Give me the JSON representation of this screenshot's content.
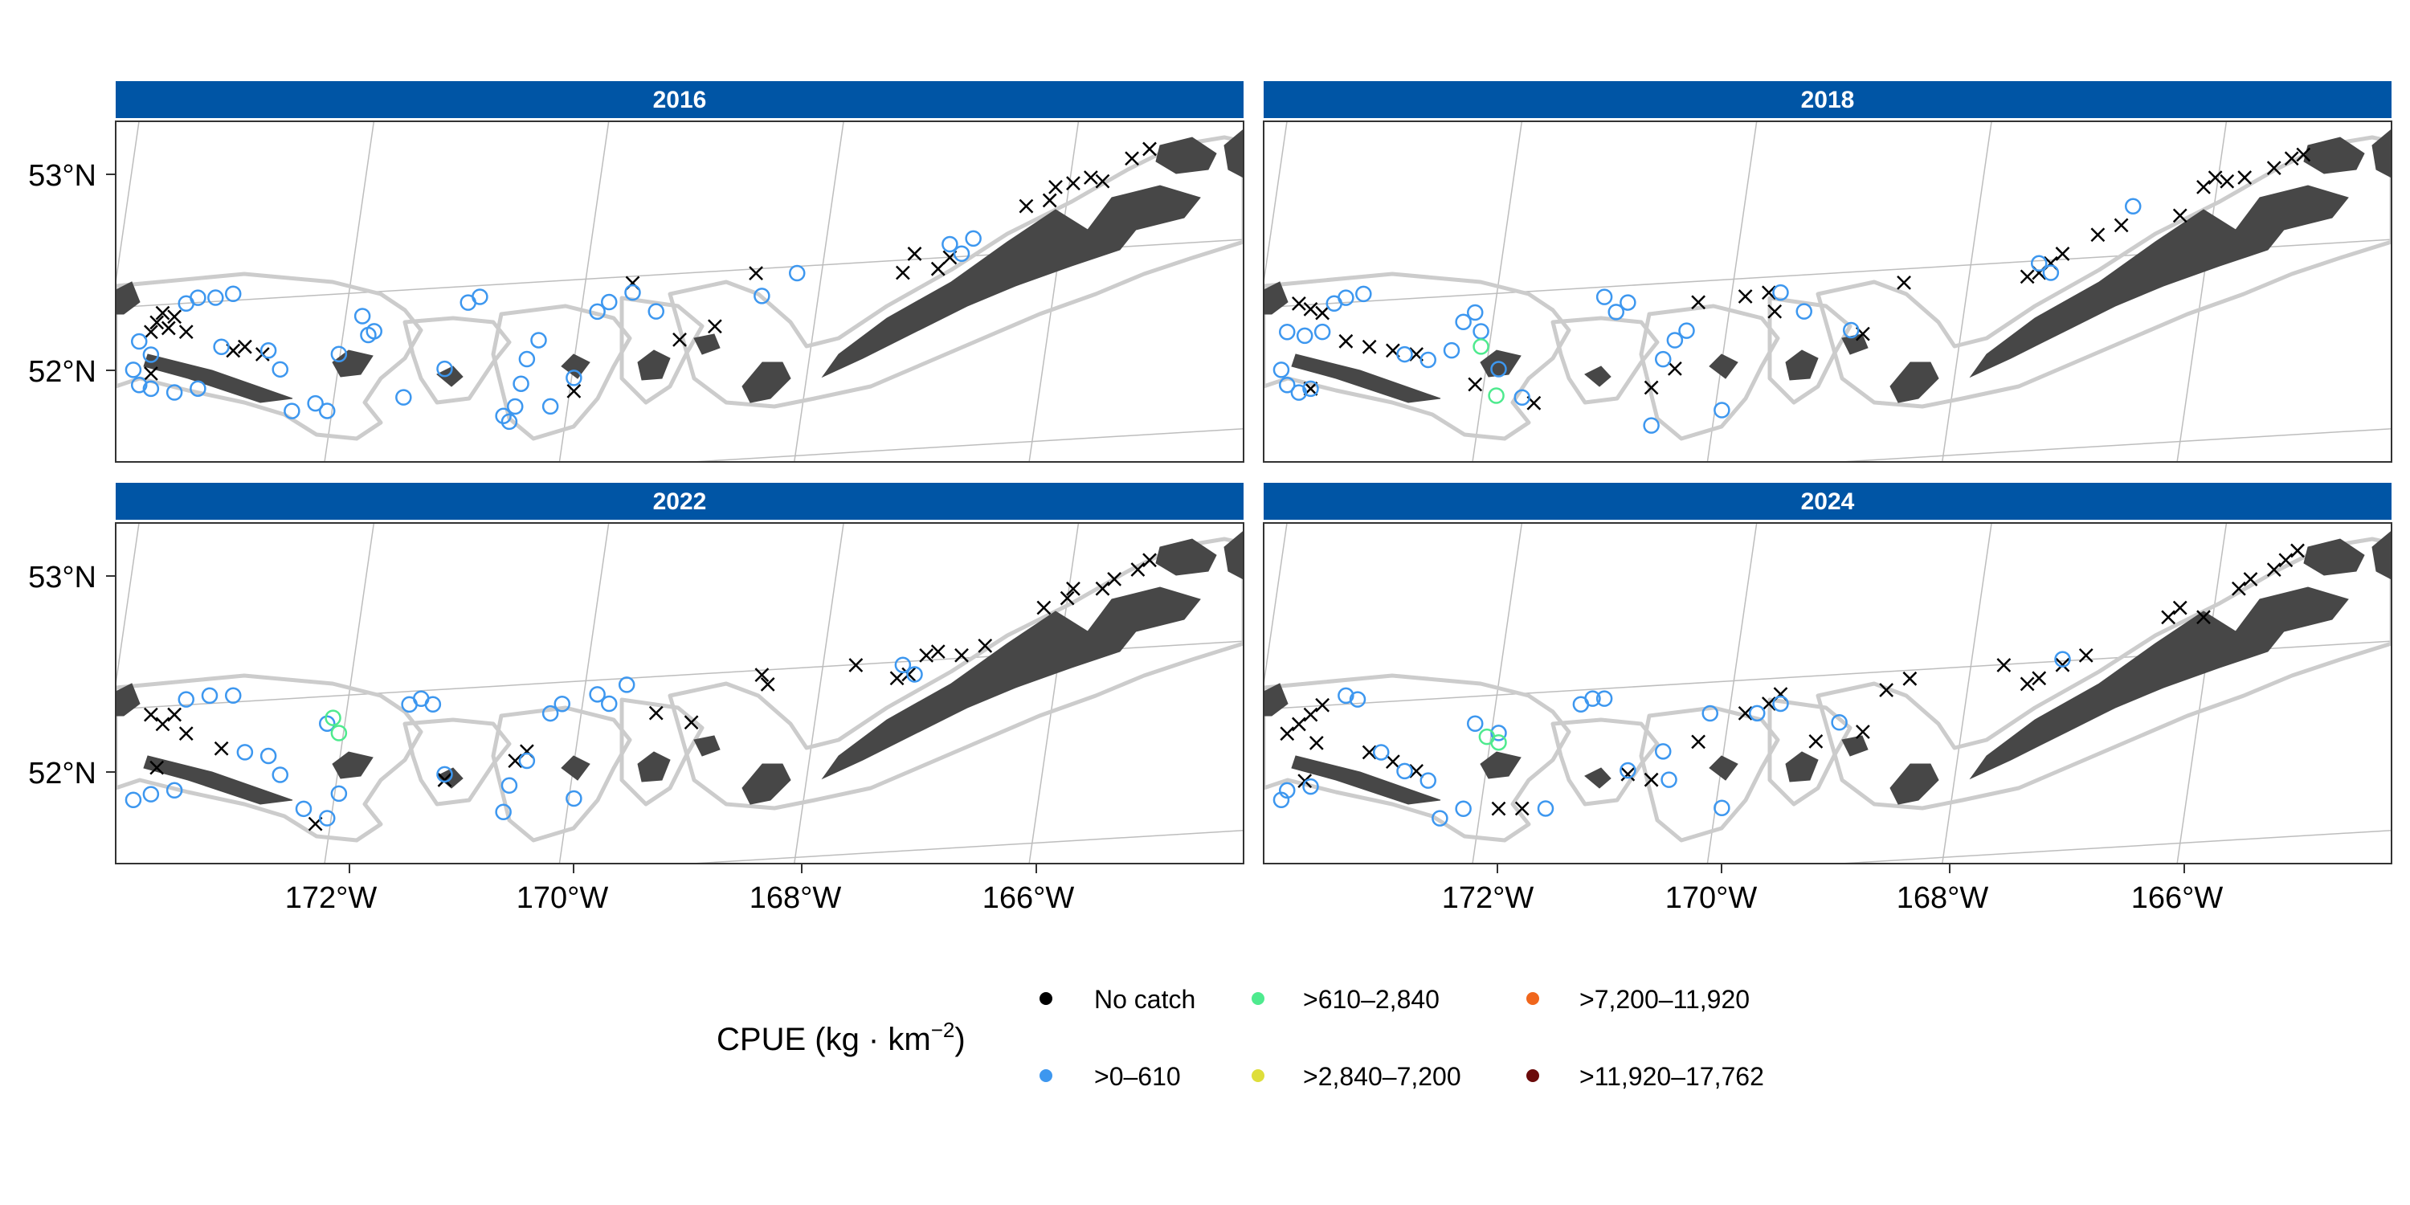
{
  "chart_data": {
    "type": "scatter",
    "subtype": "faceted-map",
    "x_ticks": [
      "172°W",
      "170°W",
      "168°W",
      "166°W"
    ],
    "y_ticks": [
      "53°N",
      "52°N"
    ],
    "xlim": [
      -173.9,
      -164.3
    ],
    "ylim": [
      51.5,
      53.3
    ],
    "legend": {
      "title_prefix": "CPUE (kg · km",
      "title_exp": "−2",
      "title_suffix": ")",
      "position": "bottom",
      "entries": [
        {
          "label": "No catch",
          "color": "#000000"
        },
        {
          "label": ">0–610",
          "color": "#3d97ef"
        },
        {
          "label": ">610–2,840",
          "color": "#4eea8e"
        },
        {
          "label": ">2,840–7,200",
          "color": "#dede3a"
        },
        {
          "label": ">7,200–11,920",
          "color": "#f0661c"
        },
        {
          "label": ">11,920–17,762",
          "color": "#6b0a0a"
        }
      ]
    },
    "panels": [
      {
        "title": "2016",
        "no_catch": [
          [
            -173.6,
            52.2
          ],
          [
            -173.55,
            52.25
          ],
          [
            -173.5,
            52.3
          ],
          [
            -173.4,
            52.28
          ],
          [
            -173.45,
            52.22
          ],
          [
            -173.3,
            52.2
          ],
          [
            -173.6,
            51.98
          ],
          [
            -172.8,
            52.12
          ],
          [
            -172.65,
            52.08
          ],
          [
            -172.9,
            52.1
          ],
          [
            -170.0,
            51.88
          ],
          [
            -169.5,
            52.45
          ],
          [
            -169.1,
            52.15
          ],
          [
            -168.8,
            52.22
          ],
          [
            -168.45,
            52.5
          ],
          [
            -167.2,
            52.5
          ],
          [
            -167.1,
            52.6
          ],
          [
            -166.9,
            52.52
          ],
          [
            -166.8,
            52.58
          ],
          [
            -166.15,
            52.85
          ],
          [
            -165.95,
            52.88
          ],
          [
            -165.9,
            52.95
          ],
          [
            -165.75,
            52.97
          ],
          [
            -165.6,
            53.0
          ],
          [
            -165.5,
            52.98
          ],
          [
            -165.25,
            53.1
          ],
          [
            -165.1,
            53.15
          ]
        ],
        "low": [
          [
            -173.75,
            52.0
          ],
          [
            -173.7,
            51.92
          ],
          [
            -173.6,
            51.9
          ],
          [
            -173.4,
            51.88
          ],
          [
            -173.2,
            51.9
          ],
          [
            -173.3,
            52.35
          ],
          [
            -173.2,
            52.38
          ],
          [
            -173.05,
            52.38
          ],
          [
            -172.9,
            52.4
          ],
          [
            -173.7,
            52.15
          ],
          [
            -173.6,
            52.08
          ],
          [
            -173.0,
            52.12
          ],
          [
            -172.6,
            52.1
          ],
          [
            -172.5,
            52.0
          ],
          [
            -172.4,
            51.78
          ],
          [
            -172.2,
            51.82
          ],
          [
            -172.1,
            51.78
          ],
          [
            -172.0,
            52.08
          ],
          [
            -171.8,
            52.28
          ],
          [
            -171.75,
            52.18
          ],
          [
            -171.7,
            52.2
          ],
          [
            -171.45,
            51.85
          ],
          [
            -171.1,
            52.0
          ],
          [
            -170.9,
            52.35
          ],
          [
            -170.8,
            52.38
          ],
          [
            -170.6,
            51.75
          ],
          [
            -170.55,
            51.72
          ],
          [
            -170.5,
            51.8
          ],
          [
            -170.45,
            51.92
          ],
          [
            -170.4,
            52.05
          ],
          [
            -170.3,
            52.15
          ],
          [
            -170.2,
            51.8
          ],
          [
            -170.0,
            51.95
          ],
          [
            -169.8,
            52.3
          ],
          [
            -169.7,
            52.35
          ],
          [
            -169.5,
            52.4
          ],
          [
            -169.3,
            52.3
          ],
          [
            -168.4,
            52.38
          ],
          [
            -168.1,
            52.5
          ],
          [
            -166.8,
            52.65
          ],
          [
            -166.7,
            52.6
          ],
          [
            -166.6,
            52.68
          ]
        ],
        "mid": []
      },
      {
        "title": "2018",
        "no_catch": [
          [
            -173.6,
            52.35
          ],
          [
            -173.5,
            52.32
          ],
          [
            -173.4,
            52.3
          ],
          [
            -173.2,
            52.15
          ],
          [
            -173.0,
            52.12
          ],
          [
            -172.8,
            52.1
          ],
          [
            -172.6,
            52.08
          ],
          [
            -173.5,
            51.9
          ],
          [
            -172.1,
            51.92
          ],
          [
            -171.6,
            51.82
          ],
          [
            -170.6,
            51.9
          ],
          [
            -170.4,
            52.0
          ],
          [
            -170.2,
            52.35
          ],
          [
            -169.8,
            52.38
          ],
          [
            -169.6,
            52.4
          ],
          [
            -169.55,
            52.3
          ],
          [
            -168.8,
            52.18
          ],
          [
            -168.45,
            52.45
          ],
          [
            -167.4,
            52.48
          ],
          [
            -167.3,
            52.5
          ],
          [
            -167.2,
            52.55
          ],
          [
            -167.1,
            52.6
          ],
          [
            -166.8,
            52.7
          ],
          [
            -166.6,
            52.75
          ],
          [
            -166.1,
            52.8
          ],
          [
            -165.9,
            52.95
          ],
          [
            -165.8,
            53.0
          ],
          [
            -165.7,
            52.98
          ],
          [
            -165.55,
            53.0
          ],
          [
            -165.3,
            53.05
          ],
          [
            -165.15,
            53.1
          ],
          [
            -165.05,
            53.12
          ]
        ],
        "low": [
          [
            -173.75,
            52.0
          ],
          [
            -173.7,
            51.92
          ],
          [
            -173.6,
            51.88
          ],
          [
            -173.5,
            51.9
          ],
          [
            -173.7,
            52.2
          ],
          [
            -173.55,
            52.18
          ],
          [
            -173.4,
            52.2
          ],
          [
            -173.3,
            52.35
          ],
          [
            -173.2,
            52.38
          ],
          [
            -173.05,
            52.4
          ],
          [
            -172.7,
            52.08
          ],
          [
            -172.5,
            52.05
          ],
          [
            -172.3,
            52.1
          ],
          [
            -172.2,
            52.25
          ],
          [
            -172.1,
            52.3
          ],
          [
            -172.05,
            52.2
          ],
          [
            -171.9,
            52.0
          ],
          [
            -171.7,
            51.85
          ],
          [
            -171.0,
            52.38
          ],
          [
            -170.9,
            52.3
          ],
          [
            -170.8,
            52.35
          ],
          [
            -170.6,
            51.7
          ],
          [
            -170.5,
            52.05
          ],
          [
            -170.4,
            52.15
          ],
          [
            -170.3,
            52.2
          ],
          [
            -170.0,
            51.78
          ],
          [
            -169.5,
            52.4
          ],
          [
            -169.3,
            52.3
          ],
          [
            -168.9,
            52.2
          ],
          [
            -167.3,
            52.55
          ],
          [
            -167.2,
            52.5
          ],
          [
            -166.5,
            52.85
          ]
        ],
        "mid": [
          [
            -172.05,
            52.12
          ],
          [
            -171.92,
            51.86
          ]
        ]
      },
      {
        "title": "2022",
        "no_catch": [
          [
            -173.6,
            52.3
          ],
          [
            -173.5,
            52.25
          ],
          [
            -173.4,
            52.3
          ],
          [
            -173.3,
            52.2
          ],
          [
            -173.55,
            52.02
          ],
          [
            -173.0,
            52.12
          ],
          [
            -172.2,
            51.72
          ],
          [
            -171.1,
            51.95
          ],
          [
            -170.5,
            52.05
          ],
          [
            -170.4,
            52.1
          ],
          [
            -169.3,
            52.3
          ],
          [
            -169.0,
            52.25
          ],
          [
            -168.4,
            52.5
          ],
          [
            -168.35,
            52.45
          ],
          [
            -167.6,
            52.55
          ],
          [
            -167.25,
            52.48
          ],
          [
            -167.15,
            52.5
          ],
          [
            -167.0,
            52.6
          ],
          [
            -166.9,
            52.62
          ],
          [
            -166.7,
            52.6
          ],
          [
            -166.5,
            52.65
          ],
          [
            -166.0,
            52.85
          ],
          [
            -165.8,
            52.9
          ],
          [
            -165.75,
            52.95
          ],
          [
            -165.5,
            52.95
          ],
          [
            -165.4,
            53.0
          ],
          [
            -165.2,
            53.05
          ],
          [
            -165.1,
            53.1
          ]
        ],
        "low": [
          [
            -173.75,
            51.85
          ],
          [
            -173.6,
            51.88
          ],
          [
            -173.4,
            51.9
          ],
          [
            -173.3,
            52.38
          ],
          [
            -173.1,
            52.4
          ],
          [
            -172.9,
            52.4
          ],
          [
            -172.8,
            52.1
          ],
          [
            -172.6,
            52.08
          ],
          [
            -172.5,
            51.98
          ],
          [
            -172.3,
            51.8
          ],
          [
            -172.1,
            51.75
          ],
          [
            -172.0,
            51.88
          ],
          [
            -172.1,
            52.25
          ],
          [
            -171.4,
            52.35
          ],
          [
            -171.3,
            52.38
          ],
          [
            -171.2,
            52.35
          ],
          [
            -171.1,
            51.98
          ],
          [
            -170.6,
            51.78
          ],
          [
            -170.55,
            51.92
          ],
          [
            -170.4,
            52.05
          ],
          [
            -170.2,
            52.3
          ],
          [
            -170.1,
            52.35
          ],
          [
            -170.0,
            51.85
          ],
          [
            -169.8,
            52.4
          ],
          [
            -169.7,
            52.35
          ],
          [
            -169.55,
            52.45
          ],
          [
            -167.2,
            52.55
          ],
          [
            -167.1,
            52.5
          ]
        ],
        "mid": [
          [
            -172.05,
            52.28
          ],
          [
            -172.0,
            52.2
          ]
        ]
      },
      {
        "title": "2024",
        "no_catch": [
          [
            -173.7,
            52.2
          ],
          [
            -173.6,
            52.25
          ],
          [
            -173.5,
            52.3
          ],
          [
            -173.4,
            52.35
          ],
          [
            -173.45,
            52.15
          ],
          [
            -173.55,
            51.95
          ],
          [
            -173.0,
            52.1
          ],
          [
            -172.8,
            52.05
          ],
          [
            -172.6,
            52.0
          ],
          [
            -171.9,
            51.8
          ],
          [
            -171.7,
            51.8
          ],
          [
            -170.8,
            51.98
          ],
          [
            -170.6,
            51.95
          ],
          [
            -170.2,
            52.15
          ],
          [
            -169.8,
            52.3
          ],
          [
            -169.6,
            52.35
          ],
          [
            -169.5,
            52.4
          ],
          [
            -169.2,
            52.15
          ],
          [
            -168.8,
            52.2
          ],
          [
            -168.6,
            52.42
          ],
          [
            -168.4,
            52.48
          ],
          [
            -167.6,
            52.55
          ],
          [
            -167.4,
            52.45
          ],
          [
            -167.3,
            52.48
          ],
          [
            -167.1,
            52.55
          ],
          [
            -166.9,
            52.6
          ],
          [
            -166.2,
            52.8
          ],
          [
            -166.1,
            52.85
          ],
          [
            -165.9,
            52.8
          ],
          [
            -165.6,
            52.95
          ],
          [
            -165.5,
            53.0
          ],
          [
            -165.3,
            53.05
          ],
          [
            -165.2,
            53.1
          ],
          [
            -165.1,
            53.15
          ]
        ],
        "low": [
          [
            -173.75,
            51.85
          ],
          [
            -173.7,
            51.9
          ],
          [
            -173.5,
            51.92
          ],
          [
            -173.2,
            52.4
          ],
          [
            -173.1,
            52.38
          ],
          [
            -172.9,
            52.1
          ],
          [
            -172.7,
            52.0
          ],
          [
            -172.5,
            51.95
          ],
          [
            -172.4,
            51.75
          ],
          [
            -172.2,
            51.8
          ],
          [
            -172.1,
            52.25
          ],
          [
            -171.9,
            52.2
          ],
          [
            -171.5,
            51.8
          ],
          [
            -171.2,
            52.35
          ],
          [
            -171.1,
            52.38
          ],
          [
            -171.0,
            52.38
          ],
          [
            -170.8,
            52.0
          ],
          [
            -170.5,
            52.1
          ],
          [
            -170.45,
            51.95
          ],
          [
            -170.1,
            52.3
          ],
          [
            -170.0,
            51.8
          ],
          [
            -169.7,
            52.3
          ],
          [
            -169.5,
            52.35
          ],
          [
            -169.0,
            52.25
          ],
          [
            -167.1,
            52.58
          ]
        ],
        "mid": [
          [
            -172.0,
            52.18
          ],
          [
            -171.9,
            52.15
          ]
        ]
      }
    ]
  }
}
